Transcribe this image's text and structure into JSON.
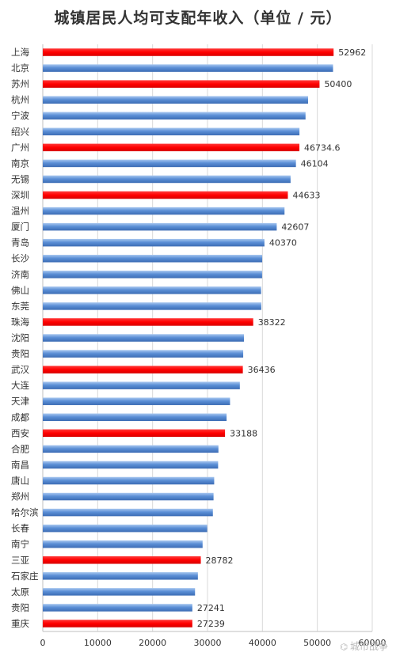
{
  "chart_data": {
    "type": "bar",
    "orientation": "horizontal",
    "title": "城镇居民人均可支配年收入（单位 / 元）",
    "categories": [
      "上海",
      "北京",
      "苏州",
      "杭州",
      "宁波",
      "绍兴",
      "广州",
      "南京",
      "无锡",
      "深圳",
      "温州",
      "厦门",
      "青岛",
      "长沙",
      "济南",
      "佛山",
      "东莞",
      "珠海",
      "沈阳",
      "贵阳",
      "武汉",
      "大连",
      "天津",
      "成都",
      "西安",
      "合肥",
      "南昌",
      "唐山",
      "郑州",
      "哈尔滨",
      "长春",
      "南宁",
      "三亚",
      "石家庄",
      "太原",
      "贵阳",
      "重庆"
    ],
    "values": [
      52962,
      52859,
      50400,
      48316,
      47852,
      46747,
      46734.6,
      46104,
      45129,
      44633,
      44026,
      42607,
      40370,
      39961,
      39940,
      39757,
      39793,
      38322,
      36643,
      36500,
      36436,
      35889,
      34101,
      33476,
      33188,
      31989,
      31932,
      31216,
      31099,
      30978,
      29944,
      29106,
      28782,
      28249,
      27727,
      27241,
      27239
    ],
    "highlight": [
      true,
      false,
      true,
      false,
      false,
      false,
      true,
      false,
      false,
      true,
      false,
      false,
      false,
      false,
      false,
      false,
      false,
      true,
      false,
      false,
      true,
      false,
      false,
      false,
      true,
      false,
      false,
      false,
      false,
      false,
      false,
      false,
      true,
      false,
      false,
      false,
      true
    ],
    "value_labels": [
      "52962",
      "",
      "50400",
      "",
      "",
      "",
      "46734.6",
      "46104",
      "",
      "44633",
      "",
      "42607",
      "40370",
      "",
      "",
      "",
      "",
      "38322",
      "",
      "",
      "36436",
      "",
      "",
      "",
      "33188",
      "",
      "",
      "",
      "",
      "",
      "",
      "",
      "28782",
      "",
      "",
      "27241",
      "27239"
    ],
    "xlim": [
      0,
      60000
    ],
    "x_ticks": [
      0,
      10000,
      20000,
      30000,
      40000,
      50000,
      60000
    ],
    "x_tick_labels": [
      "0",
      "10000",
      "20000",
      "30000",
      "40000",
      "50000",
      "60000"
    ],
    "grid": "vertical",
    "legend": "none",
    "colors": {
      "highlight": "#ff0000",
      "normal": "#5b8fd6",
      "grid": "#d9d9d9",
      "text": "#333333"
    }
  },
  "watermark": {
    "icon": "wechat-icon",
    "text": "城市战争"
  }
}
